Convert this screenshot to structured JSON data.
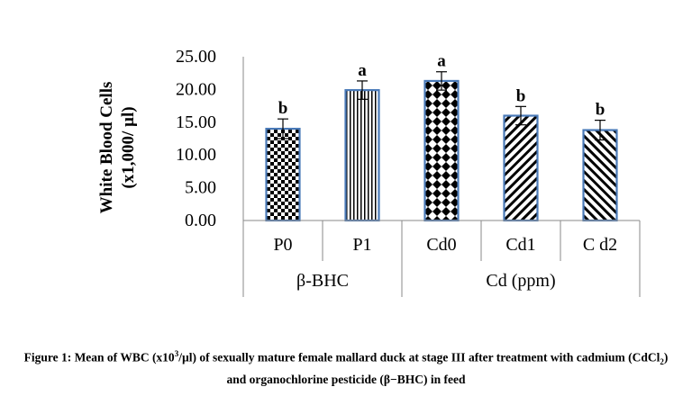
{
  "chart_data": {
    "type": "bar",
    "ylabel_line1": "White Blood Cells",
    "ylabel_line2": "(x1,000/ µl)",
    "ylim": [
      0,
      25
    ],
    "yticks": [
      "0.00",
      "5.00",
      "10.00",
      "15.00",
      "20.00",
      "25.00"
    ],
    "categories": [
      "P0",
      "P1",
      "Cd0",
      "Cd1",
      "C d2"
    ],
    "values": [
      14.0,
      19.9,
      21.3,
      16.0,
      13.8
    ],
    "errors": [
      1.5,
      1.4,
      1.4,
      1.4,
      1.5
    ],
    "significance": [
      "b",
      "a",
      "a",
      "b",
      "b"
    ],
    "patterns": [
      "checker",
      "vlines",
      "diamond",
      "diag-right",
      "diag-left"
    ],
    "groups": [
      {
        "label": "β-BHC",
        "categories": [
          "P0",
          "P1"
        ]
      },
      {
        "label": "Cd (ppm)",
        "categories": [
          "Cd0",
          "Cd1",
          "C d2"
        ]
      }
    ],
    "bar_border_color": "#4a7ab8"
  },
  "caption": {
    "prefix": "Figure 1:  Mean of WBC (x10",
    "sup": "3",
    "mid1": "/µl) of sexually mature female mallard duck at stage III after treatment with cadmium  (CdCl",
    "sub": "2",
    "mid2": ") and organochlorine pesticide  (β−BHC) in feed"
  }
}
